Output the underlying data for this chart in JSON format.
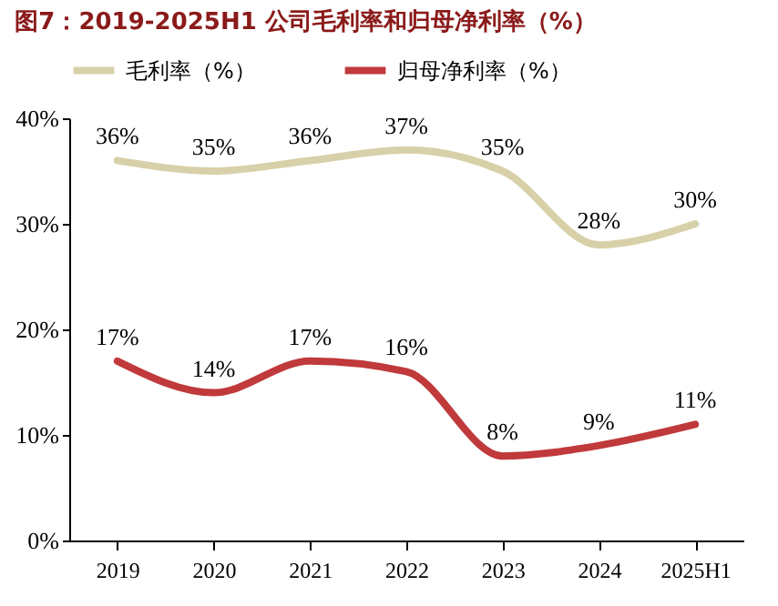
{
  "chart_data": {
    "type": "line",
    "title": "图7：2019-2025H1 公司毛利率和归母净利率（%）",
    "categories": [
      "2019",
      "2020",
      "2021",
      "2022",
      "2023",
      "2024",
      "2025H1"
    ],
    "series": [
      {
        "name": "毛利率（%）",
        "color": "#d8d0a8",
        "values": [
          36,
          35,
          36,
          37,
          35,
          28,
          30
        ],
        "value_labels": [
          "36%",
          "35%",
          "36%",
          "37%",
          "35%",
          "28%",
          "30%"
        ]
      },
      {
        "name": "归母净利率（%）",
        "color": "#c0393b",
        "values": [
          17,
          14,
          17,
          16,
          8,
          9,
          11
        ],
        "value_labels": [
          "17%",
          "14%",
          "17%",
          "16%",
          "8%",
          "9%",
          "11%"
        ]
      }
    ],
    "ylim": [
      0,
      40
    ],
    "yticks": [
      {
        "value": 0,
        "label": "0%"
      },
      {
        "value": 10,
        "label": "10%"
      },
      {
        "value": 20,
        "label": "20%"
      },
      {
        "value": 30,
        "label": "30%"
      },
      {
        "value": 40,
        "label": "40%"
      }
    ],
    "grid": false,
    "legend": "top",
    "marker": "none",
    "line_style": "solid"
  }
}
